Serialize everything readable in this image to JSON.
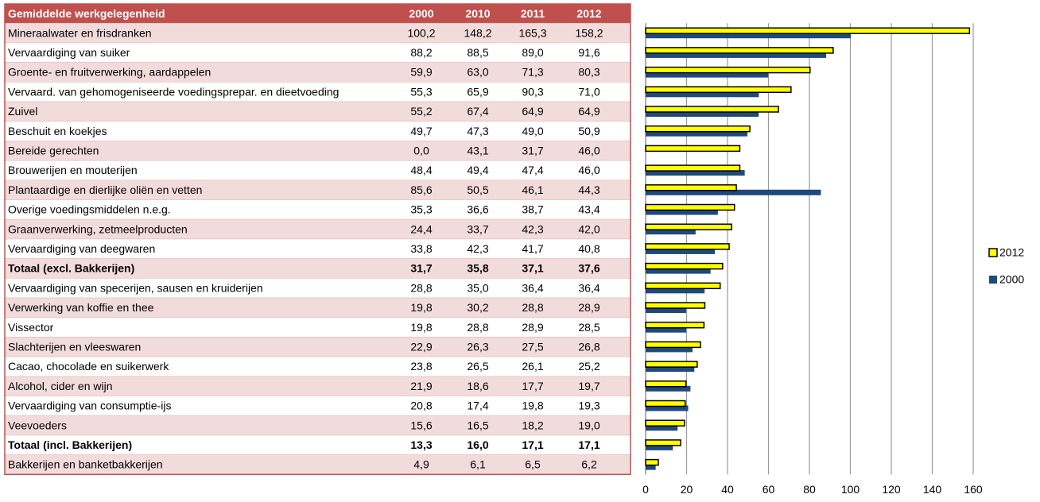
{
  "table": {
    "header": [
      "Gemiddelde werkgelegenheid",
      "2000",
      "2010",
      "2011",
      "2012"
    ],
    "rows": [
      [
        "Mineraalwater en frisdranken",
        "100,2",
        "148,2",
        "165,3",
        "158,2"
      ],
      [
        "Vervaardiging van suiker",
        "88,2",
        "88,5",
        "89,0",
        "91,6"
      ],
      [
        "Groente- en fruitverwerking, aardappelen",
        "59,9",
        "63,0",
        "71,3",
        "80,3"
      ],
      [
        "Vervaard. van gehomogeniseerde voedingsprepar. en dieetvoeding",
        "55,3",
        "65,9",
        "90,3",
        "71,0"
      ],
      [
        "Zuivel",
        "55,2",
        "67,4",
        "64,9",
        "64,9"
      ],
      [
        "Beschuit en koekjes",
        "49,7",
        "47,3",
        "49,0",
        "50,9"
      ],
      [
        "Bereide gerechten",
        "0,0",
        "43,1",
        "31,7",
        "46,0"
      ],
      [
        "Brouwerijen en mouterijen",
        "48,4",
        "49,4",
        "47,4",
        "46,0"
      ],
      [
        "Plantaardige en dierlijke oliën en vetten",
        "85,6",
        "50,5",
        "46,1",
        "44,3"
      ],
      [
        "Overige voedingsmiddelen n.e.g.",
        "35,3",
        "36,6",
        "38,7",
        "43,4"
      ],
      [
        "Graanverwerking, zetmeelproducten",
        "24,4",
        "33,7",
        "42,3",
        "42,0"
      ],
      [
        "Vervaardiging van deegwaren",
        "33,8",
        "42,3",
        "41,7",
        "40,8"
      ],
      [
        "Totaal (excl. Bakkerijen)",
        "31,7",
        "35,8",
        "37,1",
        "37,6"
      ],
      [
        "Vervaardiging van specerijen, sausen en kruiderijen",
        "28,8",
        "35,0",
        "36,4",
        "36,4"
      ],
      [
        "Verwerking van koffie en thee",
        "19,8",
        "30,2",
        "28,8",
        "28,9"
      ],
      [
        "Vissector",
        "19,8",
        "28,8",
        "28,9",
        "28,5"
      ],
      [
        "Slachterijen en vleeswaren",
        "22,9",
        "26,3",
        "27,5",
        "26,8"
      ],
      [
        "Cacao, chocolade en suikerwerk",
        "23,8",
        "26,5",
        "26,1",
        "25,2"
      ],
      [
        "Alcohol, cider en wijn",
        "21,9",
        "18,6",
        "17,7",
        "19,7"
      ],
      [
        "Vervaardiging van consumptie-ijs",
        "20,8",
        "17,4",
        "19,8",
        "19,3"
      ],
      [
        "Veevoeders",
        "15,6",
        "16,5",
        "18,2",
        "19,0"
      ],
      [
        "Totaal (incl. Bakkerijen)",
        "13,3",
        "16,0",
        "17,1",
        "17,1"
      ],
      [
        "Bakkerijen en banketbakkerijen",
        "4,9",
        "6,1",
        "6,5",
        "6,2"
      ]
    ],
    "bold_rows": [
      12,
      21
    ]
  },
  "chart_data": {
    "type": "hbar",
    "series": [
      {
        "name": "2012",
        "color": "#ffff00",
        "values": [
          158.2,
          91.6,
          80.3,
          71.0,
          64.9,
          50.9,
          46.0,
          46.0,
          44.3,
          43.4,
          42.0,
          40.8,
          37.6,
          36.4,
          28.9,
          28.5,
          26.8,
          25.2,
          19.7,
          19.3,
          19.0,
          17.1,
          6.2
        ]
      },
      {
        "name": "2000",
        "color": "#1f497d",
        "values": [
          100.2,
          88.2,
          59.9,
          55.3,
          55.2,
          49.7,
          0.0,
          48.4,
          85.6,
          35.3,
          24.4,
          33.8,
          31.7,
          28.8,
          19.8,
          19.8,
          22.9,
          23.8,
          21.9,
          20.8,
          15.6,
          13.3,
          4.9
        ]
      }
    ],
    "xlim": [
      0,
      160
    ],
    "xticks": [
      0,
      20,
      40,
      60,
      80,
      100,
      120,
      140,
      160
    ],
    "grid": true,
    "legend": "right"
  }
}
